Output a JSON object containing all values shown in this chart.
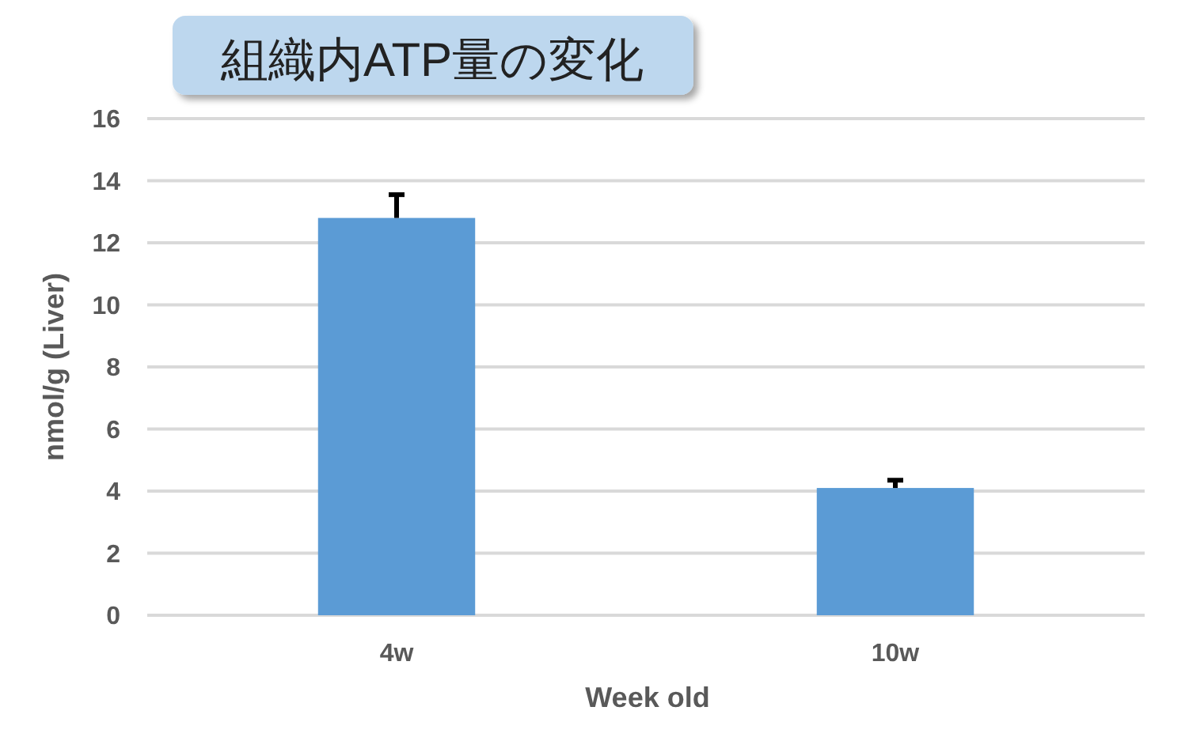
{
  "chart_data": {
    "type": "bar",
    "title": "組織内ATP量の変化",
    "xlabel": "Week old",
    "ylabel": "nmol/g (Liver)",
    "categories": [
      "4w",
      "10w"
    ],
    "values": [
      12.8,
      4.1
    ],
    "errors": [
      [
        12.8,
        13.55
      ],
      [
        4.1,
        4.35
      ]
    ],
    "color": "#5b9bd5",
    "ylim": [
      0,
      16
    ],
    "yticks": [
      0,
      2,
      4,
      6,
      8,
      10,
      12,
      14,
      16
    ],
    "grid": "y"
  }
}
